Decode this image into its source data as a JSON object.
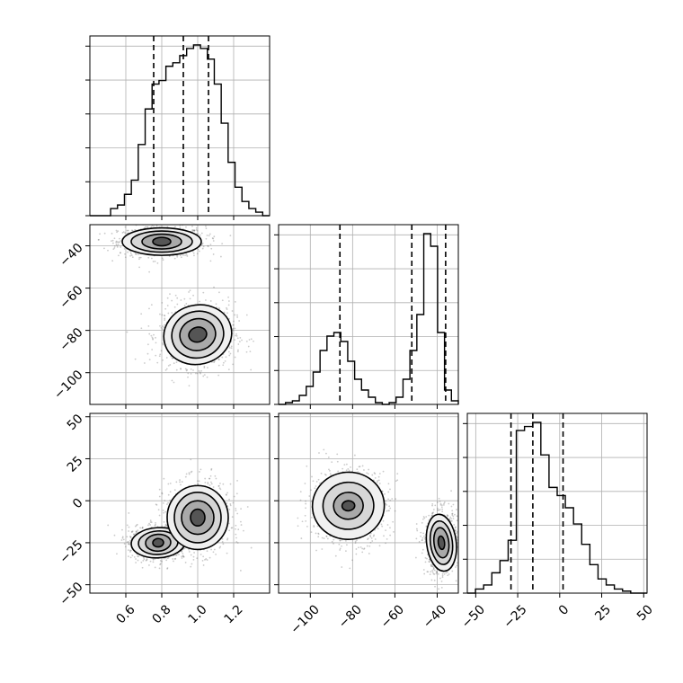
{
  "chart_data": {
    "type": "corner",
    "parameters": [
      {
        "index": 0,
        "label": "",
        "range": [
          0.4,
          1.4
        ],
        "ticks": [
          0.6,
          0.8,
          1.0,
          1.2
        ],
        "tick_labels": [
          "0.6",
          "0.8",
          "1.0",
          "1.2"
        ]
      },
      {
        "index": 1,
        "label": "",
        "range": [
          -115,
          -30
        ],
        "ticks": [
          -100,
          -80,
          -60,
          -40
        ],
        "tick_labels": [
          "−100",
          "−80",
          "−60",
          "−40"
        ]
      },
      {
        "index": 2,
        "label": "",
        "range": [
          -55,
          52
        ],
        "ticks": [
          -50,
          -25,
          0,
          25,
          50
        ],
        "tick_labels": [
          "−50",
          "−25",
          "0",
          "25",
          "50"
        ]
      }
    ],
    "quantiles": [
      [
        0.755,
        0.92,
        1.06
      ],
      [
        -86,
        -52,
        -36
      ],
      [
        -29,
        -16,
        2
      ]
    ],
    "marginals": [
      {
        "param": 0,
        "bin_edges": [
          0.4,
          1.4
        ],
        "counts": [
          0,
          0,
          0,
          2,
          3,
          6,
          10,
          20,
          30,
          37,
          38,
          42,
          43,
          45,
          47,
          48,
          47,
          44,
          37,
          26,
          15,
          8,
          4,
          2,
          1,
          0
        ],
        "note": "normalized heights, 26 bins spanning 0.4–1.4"
      },
      {
        "param": 1,
        "bin_edges": [
          -115,
          -30
        ],
        "counts": [
          0,
          1,
          2,
          5,
          10,
          18,
          30,
          38,
          40,
          35,
          24,
          14,
          8,
          4,
          1,
          0,
          1,
          4,
          14,
          30,
          50,
          95,
          88,
          40,
          8,
          2
        ],
        "note": "normalized heights, 26 bins spanning -115 to -30"
      },
      {
        "param": 2,
        "bin_edges": [
          -55,
          52
        ],
        "counts": [
          0,
          2,
          4,
          10,
          16,
          26,
          80,
          82,
          84,
          68,
          52,
          48,
          42,
          34,
          24,
          14,
          7,
          4,
          2,
          1,
          0,
          0
        ],
        "note": "normalized heights, 22 bins spanning -55 to 52"
      }
    ],
    "joint": [
      {
        "x": 0,
        "y": 1,
        "modes": [
          {
            "center": [
              0.8,
              -38
            ],
            "levels": [
              [
                0.22,
                6.5
              ],
              [
                0.17,
                5
              ],
              [
                0.11,
                3.5
              ],
              [
                0.05,
                2
              ]
            ],
            "angle": 0
          },
          {
            "center": [
              1.0,
              -82
            ],
            "levels": [
              [
                0.19,
                14
              ],
              [
                0.145,
                11
              ],
              [
                0.1,
                7.5
              ],
              [
                0.05,
                3.5
              ]
            ],
            "angle": 0.4
          }
        ]
      },
      {
        "x": 0,
        "y": 2,
        "modes": [
          {
            "center": [
              0.78,
              -25
            ],
            "levels": [
              [
                0.15,
                9
              ],
              [
                0.11,
                7
              ],
              [
                0.07,
                5
              ],
              [
                0.03,
                2.5
              ]
            ],
            "angle": 0.1
          },
          {
            "center": [
              1.0,
              -10
            ],
            "levels": [
              [
                0.17,
                19
              ],
              [
                0.13,
                15
              ],
              [
                0.09,
                10
              ],
              [
                0.04,
                5
              ]
            ],
            "angle": 0.0
          }
        ]
      },
      {
        "x": 1,
        "y": 2,
        "modes": [
          {
            "center": [
              -82,
              -3
            ],
            "levels": [
              [
                17,
                20
              ],
              [
                12,
                14
              ],
              [
                7,
                8
              ],
              [
                3,
                3
              ]
            ],
            "angle": 0.1
          },
          {
            "center": [
              -38,
              -25
            ],
            "levels": [
              [
                7,
                17
              ],
              [
                5.2,
                13
              ],
              [
                3.5,
                9
              ],
              [
                1.5,
                4
              ]
            ],
            "angle": 0.2
          }
        ]
      }
    ],
    "grid": true
  }
}
